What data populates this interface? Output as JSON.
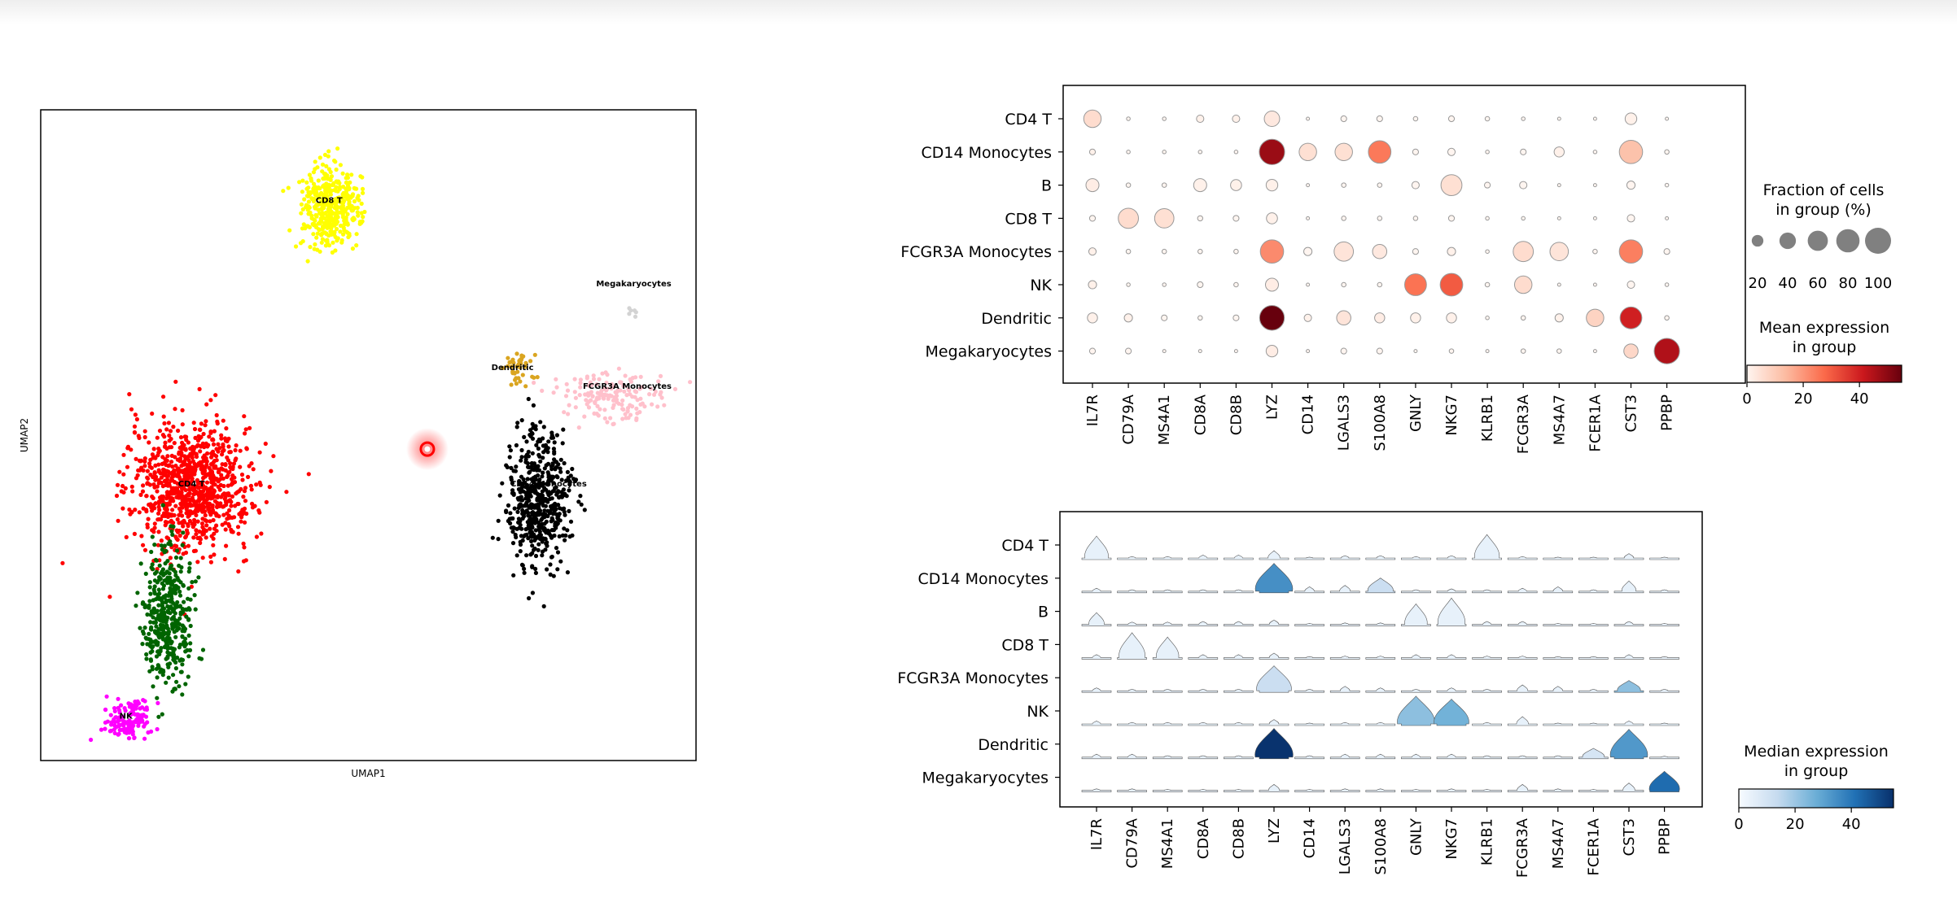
{
  "chart_data": [
    {
      "type": "scatter",
      "xlabel": "UMAP1",
      "ylabel": "UMAP2",
      "clusters": [
        {
          "name": "CD4 T",
          "label": "CD4 T",
          "color": "#ff0000",
          "center": [
            4.6,
            5.9
          ],
          "spread": [
            1.15,
            0.85
          ],
          "count": 950
        },
        {
          "name": "CD14 Monocytes",
          "label": "CD14 Monocytes",
          "color": "#000000",
          "center": [
            15.2,
            5.6
          ],
          "spread": [
            0.6,
            0.9
          ],
          "count": 520
        },
        {
          "name": "B",
          "label": "B",
          "color": "#006400",
          "center": [
            3.9,
            3.1
          ],
          "spread": [
            0.45,
            0.9
          ],
          "count": 420
        },
        {
          "name": "CD8 T",
          "label": "CD8 T",
          "color": "#ffff00",
          "center": [
            8.8,
            11.9
          ],
          "spread": [
            0.55,
            0.55
          ],
          "count": 420
        },
        {
          "name": "FCGR3A Monocytes",
          "label": "FCGR3A Monocytes",
          "color": "#ffc0cb",
          "center": [
            17.4,
            7.8
          ],
          "spread": [
            1.0,
            0.35
          ],
          "count": 160
        },
        {
          "name": "NK",
          "label": "NK",
          "color": "#ff00ff",
          "center": [
            2.6,
            0.9
          ],
          "spread": [
            0.45,
            0.3
          ],
          "count": 130
        },
        {
          "name": "Dendritic",
          "label": "Dendritic",
          "color": "#daa520",
          "center": [
            14.6,
            8.4
          ],
          "spread": [
            0.3,
            0.25
          ],
          "count": 40
        },
        {
          "name": "Megakaryocytes",
          "label": "Megakaryocytes",
          "color": "#d3d3d3",
          "center": [
            18.1,
            9.6
          ],
          "spread": [
            0.08,
            0.08
          ],
          "count": 6
        }
      ],
      "cluster_labels": [
        {
          "text": "CD8 T",
          "x": 8.8,
          "y": 12.0
        },
        {
          "text": "Megakaryocytes",
          "x": 18.1,
          "y": 10.2
        },
        {
          "text": "Dendritic",
          "x": 14.4,
          "y": 8.4
        },
        {
          "text": "FCGR3A Monocytes",
          "x": 17.9,
          "y": 8.0
        },
        {
          "text": "CD14 Monocytes",
          "x": 15.5,
          "y": 5.9
        },
        {
          "text": "CD4 T",
          "x": 4.6,
          "y": 5.9
        },
        {
          "text": "NK",
          "x": 2.6,
          "y": 0.9
        }
      ],
      "xlim": [
        0,
        20
      ],
      "ylim": [
        0,
        14
      ],
      "annotation": {
        "type": "red-circle",
        "x": 11.8,
        "y": 6.7
      }
    },
    {
      "type": "dotplot",
      "groups": [
        "CD4 T",
        "CD14 Monocytes",
        "B",
        "CD8 T",
        "FCGR3A Monocytes",
        "NK",
        "Dendritic",
        "Megakaryocytes"
      ],
      "genes": [
        "IL7R",
        "CD79A",
        "MS4A1",
        "CD8A",
        "CD8B",
        "LYZ",
        "CD14",
        "LGALS3",
        "S100A8",
        "GNLY",
        "NKG7",
        "KLRB1",
        "FCGR3A",
        "MS4A7",
        "FCER1A",
        "CST3",
        "PPBP"
      ],
      "fraction_pct": [
        [
          45,
          2,
          2,
          8,
          8,
          35,
          1,
          5,
          5,
          3,
          5,
          3,
          2,
          1,
          1,
          20,
          1
        ],
        [
          5,
          2,
          2,
          2,
          2,
          95,
          45,
          45,
          75,
          5,
          8,
          2,
          5,
          15,
          2,
          80,
          3
        ],
        [
          25,
          3,
          3,
          25,
          18,
          20,
          1,
          3,
          3,
          8,
          65,
          5,
          8,
          1,
          1,
          10,
          2
        ],
        [
          5,
          60,
          55,
          4,
          5,
          18,
          1,
          3,
          3,
          3,
          5,
          2,
          2,
          1,
          1,
          8,
          1
        ],
        [
          8,
          3,
          3,
          3,
          3,
          80,
          10,
          55,
          30,
          5,
          10,
          2,
          60,
          50,
          3,
          80,
          5
        ],
        [
          10,
          2,
          2,
          5,
          3,
          25,
          1,
          3,
          3,
          70,
          75,
          3,
          45,
          1,
          1,
          8,
          2
        ],
        [
          15,
          10,
          5,
          3,
          5,
          90,
          8,
          30,
          15,
          15,
          15,
          2,
          3,
          10,
          45,
          70,
          3
        ],
        [
          5,
          5,
          1,
          1,
          1,
          20,
          1,
          5,
          5,
          1,
          3,
          1,
          3,
          3,
          1,
          30,
          95
        ]
      ],
      "mean_expression": [
        [
          6,
          0,
          0,
          1,
          1,
          3,
          0,
          0,
          0,
          0,
          0,
          0,
          0,
          0,
          0,
          1,
          0
        ],
        [
          1,
          0,
          0,
          0,
          0,
          48,
          5,
          5,
          25,
          0,
          0,
          0,
          0,
          1,
          0,
          12,
          0
        ],
        [
          2,
          0,
          0,
          1,
          1,
          1,
          0,
          0,
          0,
          0,
          5,
          0,
          0,
          0,
          0,
          0,
          0
        ],
        [
          0,
          6,
          5,
          0,
          0,
          1,
          0,
          0,
          0,
          0,
          0,
          0,
          0,
          0,
          0,
          0,
          0
        ],
        [
          1,
          0,
          0,
          0,
          0,
          22,
          0,
          4,
          3,
          0,
          1,
          0,
          6,
          4,
          0,
          24,
          0
        ],
        [
          1,
          0,
          0,
          0,
          0,
          2,
          0,
          0,
          0,
          26,
          30,
          0,
          6,
          0,
          0,
          0,
          0
        ],
        [
          1,
          1,
          0,
          0,
          0,
          55,
          1,
          4,
          2,
          1,
          1,
          0,
          0,
          1,
          8,
          40,
          0
        ],
        [
          0,
          0,
          0,
          0,
          0,
          2,
          0,
          0,
          0,
          0,
          0,
          0,
          0,
          0,
          0,
          7,
          45
        ]
      ],
      "size_legend": {
        "title": "Fraction of cells in group (%)",
        "title_lines": [
          "Fraction of cells",
          "in group (%)"
        ],
        "values": [
          20,
          40,
          60,
          80,
          100
        ]
      },
      "color_legend": {
        "title_lines": [
          "Mean expression",
          "in group"
        ],
        "ticks": [
          0,
          20,
          40
        ],
        "range": [
          0,
          55
        ],
        "colormap": "Reds"
      }
    },
    {
      "type": "stacked_violin",
      "groups": [
        "CD4 T",
        "CD14 Monocytes",
        "B",
        "CD8 T",
        "FCGR3A Monocytes",
        "NK",
        "Dendritic",
        "Megakaryocytes"
      ],
      "genes": [
        "IL7R",
        "CD79A",
        "MS4A1",
        "CD8A",
        "CD8B",
        "LYZ",
        "CD14",
        "LGALS3",
        "S100A8",
        "GNLY",
        "NKG7",
        "KLRB1",
        "FCGR3A",
        "MS4A7",
        "FCER1A",
        "CST3",
        "PPBP"
      ],
      "median_expression": [
        [
          0,
          0,
          0,
          0,
          0,
          0,
          0,
          0,
          0,
          0,
          0,
          0,
          0,
          0,
          0,
          0,
          0
        ],
        [
          0,
          0,
          0,
          0,
          0,
          30,
          0,
          0,
          8,
          0,
          0,
          0,
          0,
          0,
          0,
          0,
          0
        ],
        [
          0,
          0,
          0,
          0,
          0,
          0,
          0,
          0,
          0,
          0,
          0,
          0,
          0,
          0,
          0,
          0,
          0
        ],
        [
          0,
          0,
          0,
          0,
          0,
          0,
          0,
          0,
          0,
          0,
          0,
          0,
          0,
          0,
          0,
          0,
          0
        ],
        [
          0,
          0,
          0,
          0,
          0,
          8,
          0,
          0,
          0,
          0,
          0,
          0,
          0,
          0,
          0,
          18,
          0
        ],
        [
          0,
          0,
          0,
          0,
          0,
          0,
          0,
          0,
          0,
          18,
          22,
          0,
          0,
          0,
          0,
          0,
          0
        ],
        [
          0,
          0,
          0,
          0,
          0,
          50,
          0,
          0,
          0,
          0,
          0,
          0,
          0,
          0,
          5,
          28,
          0
        ],
        [
          0,
          0,
          0,
          0,
          0,
          0,
          0,
          0,
          0,
          0,
          0,
          0,
          0,
          0,
          0,
          0,
          38
        ]
      ],
      "violin_height": [
        [
          0.75,
          0.05,
          0.05,
          0.1,
          0.1,
          0.25,
          0.03,
          0.08,
          0.08,
          0.05,
          0.08,
          0.8,
          0.05,
          0.03,
          0.03,
          0.15,
          0.03
        ],
        [
          0.1,
          0.05,
          0.05,
          0.05,
          0.05,
          0.95,
          0.15,
          0.2,
          0.45,
          0.05,
          0.08,
          0.05,
          0.1,
          0.15,
          0.05,
          0.35,
          0.05
        ],
        [
          0.4,
          0.08,
          0.08,
          0.1,
          0.1,
          0.15,
          0.03,
          0.05,
          0.05,
          0.7,
          0.9,
          0.1,
          0.1,
          0.03,
          0.03,
          0.1,
          0.03
        ],
        [
          0.1,
          0.85,
          0.7,
          0.1,
          0.1,
          0.15,
          0.03,
          0.05,
          0.05,
          0.1,
          0.1,
          0.05,
          0.05,
          0.03,
          0.03,
          0.1,
          0.03
        ],
        [
          0.1,
          0.05,
          0.05,
          0.05,
          0.05,
          0.85,
          0.05,
          0.15,
          0.1,
          0.05,
          0.1,
          0.05,
          0.2,
          0.15,
          0.05,
          0.35,
          0.05
        ],
        [
          0.1,
          0.05,
          0.05,
          0.05,
          0.05,
          0.15,
          0.03,
          0.05,
          0.05,
          0.95,
          0.85,
          0.05,
          0.25,
          0.03,
          0.03,
          0.1,
          0.03
        ],
        [
          0.1,
          0.1,
          0.05,
          0.05,
          0.05,
          0.98,
          0.05,
          0.1,
          0.1,
          0.1,
          0.1,
          0.05,
          0.05,
          0.05,
          0.3,
          0.95,
          0.03
        ],
        [
          0.05,
          0.05,
          0.03,
          0.03,
          0.03,
          0.2,
          0.03,
          0.05,
          0.05,
          0.03,
          0.05,
          0.03,
          0.2,
          0.05,
          0.03,
          0.25,
          0.65
        ]
      ],
      "color_legend": {
        "title_lines": [
          "Median expression",
          "in group"
        ],
        "ticks": [
          0,
          20,
          40
        ],
        "range": [
          0,
          55
        ],
        "colormap": "Blues"
      }
    }
  ]
}
